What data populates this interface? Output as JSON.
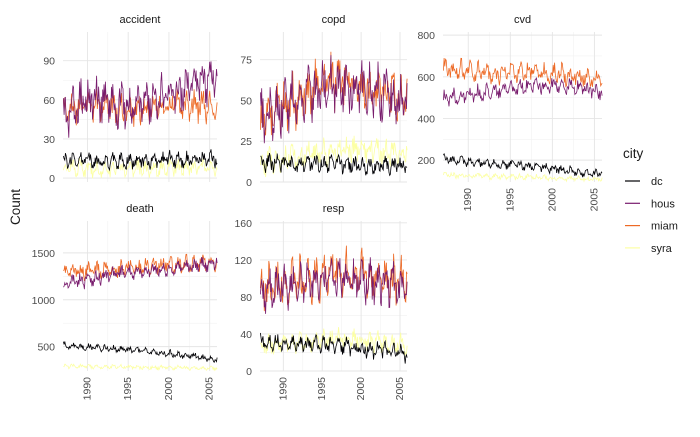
{
  "chart_data": {
    "type": "line",
    "facet_by": "cause",
    "ylabel": "Count",
    "xlabel": "",
    "x_range": [
      1987,
      2005.9
    ],
    "x_ticks": [
      1990,
      1995,
      2000,
      2005
    ],
    "grid": true,
    "legend": {
      "title": "city",
      "position": "right",
      "entries": [
        "dc",
        "hous",
        "miam",
        "syra"
      ]
    },
    "colors": {
      "dc": "#000004",
      "hous": "#781c6d",
      "miam": "#ed6925",
      "syra": "#fcffa4"
    },
    "panels": [
      {
        "name": "accident",
        "ylim": [
          -3,
          112
        ],
        "y_ticks": [
          0,
          30,
          60,
          90
        ],
        "series": [
          {
            "city": "dc",
            "level": [
              13,
              14,
              13,
              13,
              13,
              14,
              14,
              14,
              15,
              15
            ],
            "spread": 7
          },
          {
            "city": "hous",
            "level": [
              46,
              58,
              60,
              56,
              54,
              59,
              63,
              67,
              72,
              76
            ],
            "spread": 18
          },
          {
            "city": "miam",
            "level": [
              48,
              55,
              56,
              53,
              52,
              54,
              57,
              56,
              56,
              55
            ],
            "spread": 14
          },
          {
            "city": "syra",
            "level": [
              8,
              8,
              7,
              7,
              8,
              7,
              8,
              8,
              8,
              8
            ],
            "spread": 7
          }
        ]
      },
      {
        "name": "copd",
        "ylim": [
          0,
          92
        ],
        "y_ticks": [
          0,
          25,
          50,
          75
        ],
        "series": [
          {
            "city": "dc",
            "level": [
              12,
              12,
              11,
              11,
              11,
              11,
              10,
              10,
              10,
              10
            ],
            "spread": 6
          },
          {
            "city": "hous",
            "level": [
              38,
              44,
              50,
              55,
              58,
              60,
              57,
              55,
              53,
              52
            ],
            "spread": 18
          },
          {
            "city": "miam",
            "level": [
              37,
              43,
              49,
              56,
              60,
              62,
              58,
              55,
              54,
              53
            ],
            "spread": 18
          },
          {
            "city": "syra",
            "level": [
              12,
              14,
              16,
              17,
              18,
              20,
              20,
              19,
              18,
              18
            ],
            "spread": 9
          }
        ]
      },
      {
        "name": "cvd",
        "ylim": [
          95,
          815
        ],
        "y_ticks": [
          200,
          400,
          600,
          800
        ],
        "series": [
          {
            "city": "dc",
            "level": [
              205,
              195,
              185,
              180,
              175,
              170,
              160,
              150,
              140,
              135
            ],
            "spread": 25
          },
          {
            "city": "hous",
            "level": [
              500,
              510,
              520,
              535,
              545,
              555,
              560,
              550,
              540,
              530
            ],
            "spread": 45
          },
          {
            "city": "miam",
            "level": [
              640,
              630,
              620,
              610,
              620,
              625,
              620,
              610,
              600,
              590
            ],
            "spread": 55
          },
          {
            "city": "syra",
            "level": [
              130,
              125,
              125,
              120,
              120,
              118,
              115,
              112,
              110,
              108
            ],
            "spread": 15
          }
        ]
      },
      {
        "name": "death",
        "ylim": [
          240,
          1840
        ],
        "y_ticks": [
          500,
          1000,
          1500
        ],
        "series": [
          {
            "city": "dc",
            "level": [
              520,
              505,
              490,
              475,
              460,
              445,
              430,
              410,
              390,
              360
            ],
            "spread": 40
          },
          {
            "city": "hous",
            "level": [
              1150,
              1200,
              1240,
              1270,
              1300,
              1320,
              1330,
              1350,
              1370,
              1400
            ],
            "spread": 90
          },
          {
            "city": "miam",
            "level": [
              1320,
              1300,
              1310,
              1330,
              1350,
              1360,
              1380,
              1380,
              1390,
              1400
            ],
            "spread": 100
          },
          {
            "city": "syra",
            "level": [
              290,
              290,
              285,
              285,
              280,
              280,
              275,
              275,
              270,
              270
            ],
            "spread": 25
          }
        ]
      },
      {
        "name": "resp",
        "ylim": [
          0,
          162
        ],
        "y_ticks": [
          0,
          40,
          80,
          120,
          160
        ],
        "series": [
          {
            "city": "dc",
            "level": [
              32,
              31,
              30,
              29,
              28,
              27,
              25,
              23,
              21,
              18
            ],
            "spread": 10
          },
          {
            "city": "hous",
            "level": [
              85,
              88,
              90,
              95,
              98,
              100,
              98,
              96,
              94,
              90
            ],
            "spread": 25
          },
          {
            "city": "miam",
            "level": [
              90,
              92,
              95,
              100,
              105,
              108,
              105,
              100,
              98,
              95
            ],
            "spread": 28
          },
          {
            "city": "syra",
            "level": [
              28,
              28,
              30,
              32,
              33,
              35,
              34,
              32,
              30,
              28
            ],
            "spread": 12
          }
        ]
      }
    ]
  }
}
